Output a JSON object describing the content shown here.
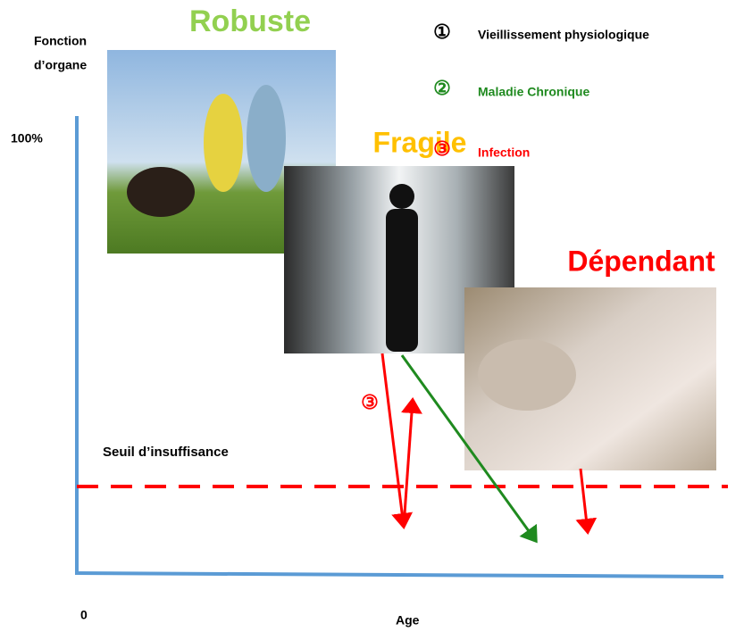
{
  "axis": {
    "y_label": [
      "Fonction",
      "d’organe"
    ],
    "y_top": "100%",
    "origin": "0",
    "x_label": "Age"
  },
  "stages": [
    {
      "label": "Robuste"
    },
    {
      "label": "Fragile"
    },
    {
      "label": "Dépendant"
    }
  ],
  "legend": [
    {
      "symbol": "①",
      "label": "Vieillissement physiologique"
    },
    {
      "symbol": "②",
      "label": "Maladie Chronique"
    },
    {
      "symbol": "③",
      "label": "Infection"
    }
  ],
  "threshold": {
    "label": "Seuil d’insuffisance"
  },
  "arrow_marker": "③"
}
